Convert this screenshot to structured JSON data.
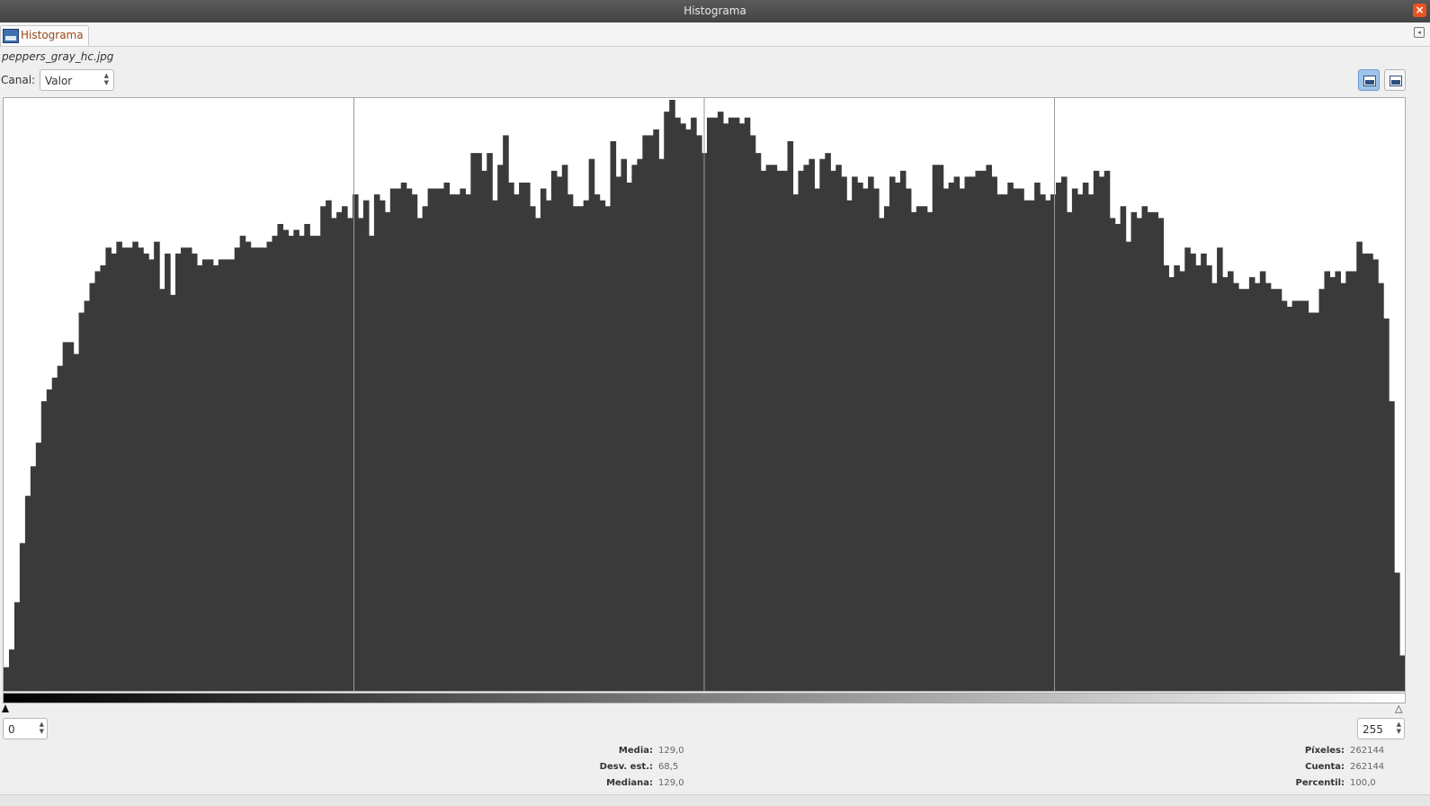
{
  "window": {
    "title": "Histograma",
    "close_icon": "close-icon"
  },
  "tab": {
    "label": "Histograma",
    "icon": "histogram-icon"
  },
  "image_name": "peppers_gray_hc.jpg",
  "channel": {
    "label": "Canal:",
    "value": "Valor"
  },
  "range": {
    "low": "0",
    "high": "255"
  },
  "stats_left": [
    {
      "label": "Media:",
      "value": "129,0"
    },
    {
      "label": "Desv. est.:",
      "value": "68,5"
    },
    {
      "label": "Mediana:",
      "value": "129,0"
    }
  ],
  "stats_right": [
    {
      "label": "Píxeles:",
      "value": "262144"
    },
    {
      "label": "Cuenta:",
      "value": "262144"
    },
    {
      "label": "Percentil:",
      "value": "100,0"
    }
  ],
  "colors": {
    "bars": "#3a3a3a",
    "plot_bg": "#ffffff",
    "grid": "#9a9a9a",
    "accent": "#e95420"
  },
  "chart_data": {
    "type": "bar",
    "x_range": [
      0,
      255
    ],
    "y_range": [
      0,
      100
    ],
    "grid": "vertical lines at quarters",
    "values": [
      4,
      7,
      15,
      25,
      33,
      38,
      42,
      49,
      51,
      53,
      55,
      59,
      59,
      57,
      64,
      66,
      69,
      71,
      72,
      75,
      74,
      76,
      75,
      75,
      76,
      75,
      74,
      73,
      76,
      68,
      74,
      67,
      74,
      75,
      75,
      74,
      72,
      73,
      73,
      72,
      73,
      73,
      73,
      75,
      77,
      76,
      75,
      75,
      75,
      76,
      77,
      79,
      78,
      77,
      78,
      77,
      79,
      77,
      77,
      82,
      83,
      80,
      81,
      82,
      80,
      84,
      80,
      83,
      77,
      84,
      83,
      81,
      85,
      85,
      86,
      85,
      84,
      80,
      82,
      85,
      85,
      85,
      86,
      84,
      84,
      85,
      84,
      91,
      91,
      88,
      91,
      83,
      89,
      94,
      86,
      84,
      86,
      86,
      82,
      80,
      85,
      83,
      88,
      87,
      89,
      84,
      82,
      82,
      83,
      90,
      84,
      83,
      82,
      93,
      87,
      90,
      86,
      89,
      90,
      94,
      94,
      95,
      90,
      98,
      100,
      97,
      96,
      95,
      97,
      94,
      91,
      97,
      97,
      98,
      96,
      97,
      97,
      96,
      97,
      94,
      91,
      88,
      89,
      89,
      88,
      88,
      93,
      84,
      88,
      89,
      90,
      85,
      90,
      91,
      88,
      89,
      87,
      83,
      87,
      86,
      85,
      87,
      85,
      80,
      82,
      87,
      86,
      88,
      85,
      81,
      82,
      82,
      81,
      89,
      89,
      85,
      86,
      87,
      85,
      87,
      87,
      88,
      88,
      89,
      87,
      84,
      84,
      86,
      85,
      85,
      83,
      83,
      86,
      84,
      83,
      84,
      86,
      87,
      81,
      85,
      84,
      86,
      84,
      88,
      87,
      88,
      80,
      79,
      82,
      76,
      81,
      80,
      82,
      81,
      81,
      80,
      72,
      70,
      72,
      71,
      75,
      74,
      72,
      74,
      72,
      69,
      75,
      70,
      71,
      69,
      68,
      68,
      70,
      69,
      71,
      69,
      68,
      68,
      66,
      65,
      66,
      66,
      66,
      64,
      64,
      68,
      71,
      70,
      71,
      69,
      71,
      71,
      76,
      74,
      74,
      73,
      69,
      63,
      49,
      20,
      6
    ]
  }
}
